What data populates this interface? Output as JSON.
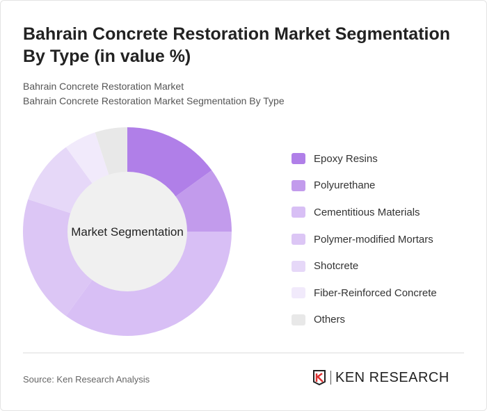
{
  "title": "Bahrain Concrete Restoration Market Segmentation By Type (in value %)",
  "subtitle1": "Bahrain Concrete Restoration Market",
  "subtitle2": "Bahrain Concrete Restoration Market Segmentation By Type",
  "source": "Source: Ken Research Analysis",
  "logo_text": "KEN RESEARCH",
  "chart_data": {
    "type": "pie",
    "variant": "donut",
    "center_label": "Market Segmentation",
    "categories": [
      "Epoxy Resins",
      "Polyurethane",
      "Cementitious Materials",
      "Polymer-modified Mortars",
      "Shotcrete",
      "Fiber-Reinforced Concrete",
      "Others"
    ],
    "values": [
      15,
      10,
      35,
      20,
      10,
      5,
      5
    ],
    "colors": [
      "#b07fe8",
      "#c29bec",
      "#d8bff5",
      "#dcc6f5",
      "#e6d8f8",
      "#f1eafb",
      "#e8e8e8"
    ],
    "legend_position": "right"
  }
}
